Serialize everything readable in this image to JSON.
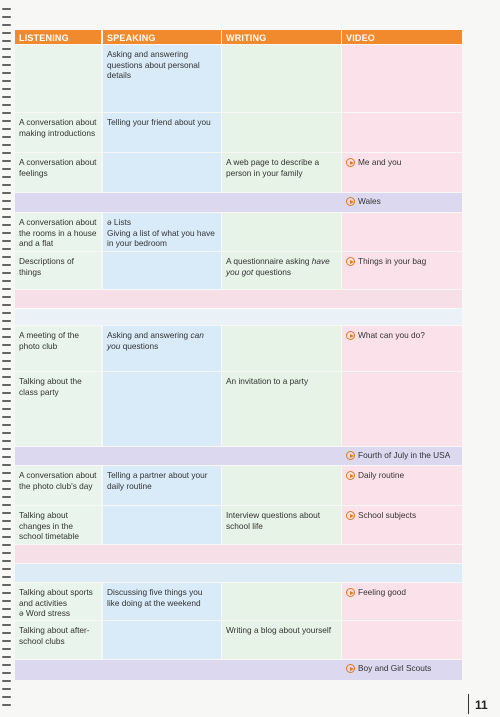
{
  "header": {
    "columns": [
      "LISTENING",
      "SPEAKING",
      "WRITING",
      "VIDEO"
    ]
  },
  "rows": [
    {
      "speaking": "Asking and answering questions about personal details"
    },
    {
      "listening": "A conversation about making introductions",
      "speaking": "Telling your friend about you"
    },
    {
      "listening": "A conversation about feelings",
      "writing": "A web page to describe a person in your family",
      "video": "Me and you"
    },
    {
      "video": "Wales"
    },
    {
      "listening": "A conversation about the rooms in a house and a flat",
      "speaking": [
        "ə Lists",
        "Giving a list of what you have in your bedroom"
      ]
    },
    {
      "listening": "Descriptions of things",
      "writing": [
        {
          "parts": [
            {
              "text": "A questionnaire asking "
            },
            {
              "text": "have you got",
              "italic": true
            },
            {
              "text": " questions"
            }
          ]
        }
      ],
      "video": "Things in your bag"
    },
    {
      "listening": "A meeting of the photo club",
      "speaking": [
        {
          "parts": [
            {
              "text": "Asking and answering "
            },
            {
              "text": "can you",
              "italic": true
            },
            {
              "text": " questions"
            }
          ]
        }
      ],
      "video": "What can you do?"
    },
    {
      "listening": "Talking about the class party",
      "writing": "An invitation to a party"
    },
    {
      "video": "Fourth of July in the USA"
    },
    {
      "listening": "A conversation about the photo club's day",
      "speaking": "Telling a partner about your daily routine",
      "video": "Daily routine"
    },
    {
      "listening": "Talking about changes in the school timetable",
      "writing": "Interview questions about school life",
      "video": "School subjects"
    },
    {
      "listening": [
        "Talking about sports and activities",
        "ə Word stress"
      ],
      "speaking": "Discussing five things you like doing at the weekend",
      "video": "Feeling good"
    },
    {
      "listening": "Talking about after-school clubs",
      "writing": "Writing a blog about yourself"
    },
    {
      "video": "Boy and Girl Scouts"
    }
  ],
  "page_number": "11"
}
